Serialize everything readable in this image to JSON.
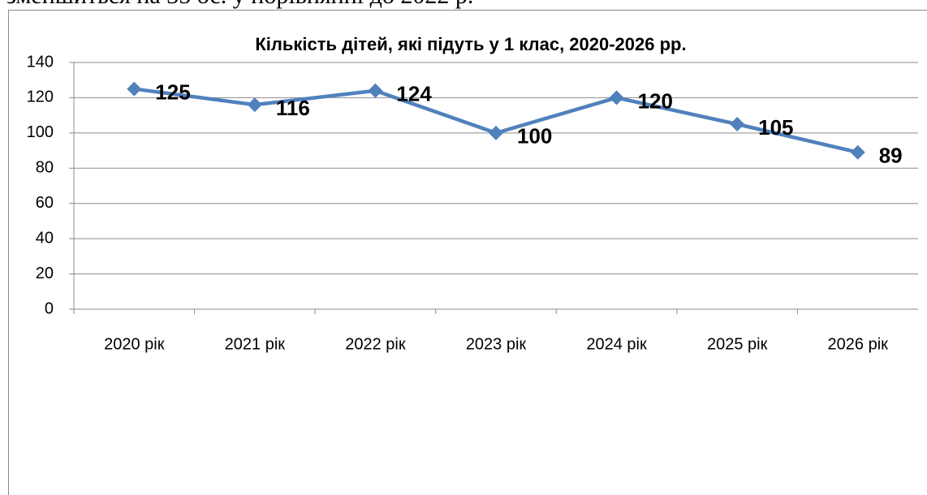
{
  "text": "зменшиться на 35 ос. у порівнянні до 2022 р.",
  "chart_data": {
    "type": "line",
    "title": "Кількість дітей, які підуть у 1 клас, 2020-2026 рр.",
    "categories": [
      "2020 рік",
      "2021 рік",
      "2022 рік",
      "2023 рік",
      "2024 рік",
      "2025 рік",
      "2026 рік"
    ],
    "values": [
      125,
      116,
      124,
      100,
      120,
      105,
      89
    ],
    "color": "#4f81bd",
    "ylim": [
      0,
      140
    ],
    "yticks": [
      0,
      20,
      40,
      60,
      80,
      100,
      120,
      140
    ],
    "grid": true
  }
}
